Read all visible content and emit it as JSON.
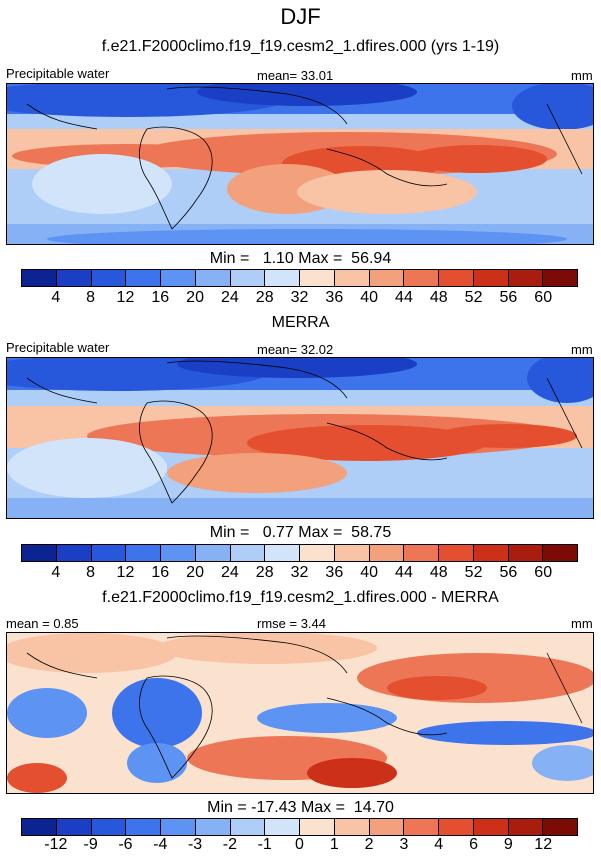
{
  "title": "DJF",
  "panels": [
    {
      "subtitle": "f.e21.F2000climo.f19_f19.cesm2_1.dfires.000 (yrs 1-19)",
      "left_label": "Precipitable water",
      "center_label": "mean=  33.01",
      "right_label": "mm",
      "minmax": "Min =   1.10 Max =  56.94",
      "ticks": [
        "4",
        "8",
        "12",
        "16",
        "20",
        "24",
        "28",
        "32",
        "36",
        "40",
        "44",
        "48",
        "52",
        "56",
        "60"
      ],
      "colors": [
        "#0c2491",
        "#1b3fc4",
        "#2758dc",
        "#3d74ec",
        "#5d93f2",
        "#86b1f4",
        "#aecdf7",
        "#d2e4fa",
        "#fbe2cf",
        "#f8c4a5",
        "#f3a07c",
        "#ec7655",
        "#e34f2f",
        "#cc3019",
        "#a81d0d",
        "#7b0b04"
      ]
    },
    {
      "subtitle": "MERRA",
      "left_label": "Precipitable water",
      "center_label": "mean=  32.02",
      "right_label": "mm",
      "minmax": "Min =   0.77 Max =  58.75",
      "ticks": [
        "4",
        "8",
        "12",
        "16",
        "20",
        "24",
        "28",
        "32",
        "36",
        "40",
        "44",
        "48",
        "52",
        "56",
        "60"
      ],
      "colors": [
        "#0c2491",
        "#1b3fc4",
        "#2758dc",
        "#3d74ec",
        "#5d93f2",
        "#86b1f4",
        "#aecdf7",
        "#d2e4fa",
        "#fbe2cf",
        "#f8c4a5",
        "#f3a07c",
        "#ec7655",
        "#e34f2f",
        "#cc3019",
        "#a81d0d",
        "#7b0b04"
      ]
    },
    {
      "subtitle": "f.e21.F2000climo.f19_f19.cesm2_1.dfires.000 - MERRA",
      "left_label": "mean =   0.85",
      "center_label": "rmse =   3.44",
      "right_label": "mm",
      "minmax": "Min = -17.43 Max =  14.70",
      "ticks": [
        "-12",
        "-9",
        "-6",
        "-4",
        "-3",
        "-2",
        "-1",
        "0",
        "1",
        "2",
        "3",
        "4",
        "6",
        "9",
        "12"
      ],
      "colors": [
        "#0c2491",
        "#1b3fc4",
        "#2758dc",
        "#3d74ec",
        "#5d93f2",
        "#86b1f4",
        "#aecdf7",
        "#d2e4fa",
        "#fbe2cf",
        "#f8c4a5",
        "#f3a07c",
        "#ec7655",
        "#e34f2f",
        "#cc3019",
        "#a81d0d",
        "#7b0b04"
      ]
    }
  ]
}
